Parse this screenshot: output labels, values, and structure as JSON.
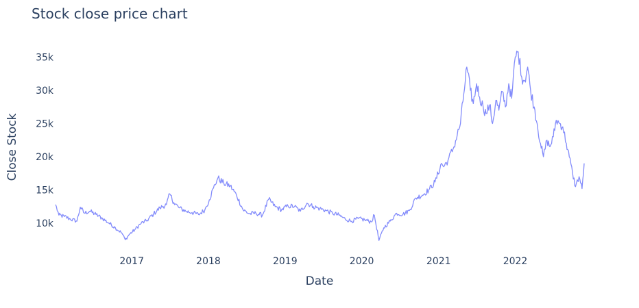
{
  "chart_data": {
    "type": "line",
    "title": "Stock close price chart",
    "xlabel": "Date",
    "ylabel": "Close Stock",
    "x_tick_labels": [
      "2017",
      "2018",
      "2019",
      "2020",
      "2021",
      "2022"
    ],
    "y_tick_labels": [
      "10k",
      "15k",
      "20k",
      "25k",
      "30k",
      "35k"
    ],
    "y_ticks": [
      10000,
      15000,
      20000,
      25000,
      30000,
      35000
    ],
    "xlim": [
      "2016-01-04",
      "2022-11-25"
    ],
    "ylim": [
      6500,
      36800
    ],
    "grid": false,
    "line_color": "#636efa",
    "series": [
      {
        "x": [
          "2016-01-04",
          "2016-01-20",
          "2016-02-15",
          "2016-03-15",
          "2016-04-15",
          "2016-05-01",
          "2016-05-20",
          "2016-06-15",
          "2016-07-15",
          "2016-08-15",
          "2016-09-15",
          "2016-10-15",
          "2016-11-15",
          "2016-12-01",
          "2016-12-20",
          "2017-01-15",
          "2017-02-15",
          "2017-03-15",
          "2017-04-15",
          "2017-05-15",
          "2017-06-15",
          "2017-07-01",
          "2017-07-20",
          "2017-08-15",
          "2017-09-15",
          "2017-10-15",
          "2017-11-15",
          "2017-12-15",
          "2018-01-05",
          "2018-01-25",
          "2018-02-15",
          "2018-03-15",
          "2018-04-15",
          "2018-05-15",
          "2018-06-15",
          "2018-07-15",
          "2018-08-15",
          "2018-09-15",
          "2018-10-15",
          "2018-11-15",
          "2018-12-15",
          "2019-01-15",
          "2019-02-15",
          "2019-03-15",
          "2019-04-15",
          "2019-05-15",
          "2019-06-15",
          "2019-07-15",
          "2019-08-15",
          "2019-09-15",
          "2019-10-15",
          "2019-11-15",
          "2019-12-15",
          "2020-01-15",
          "2020-02-15",
          "2020-03-01",
          "2020-03-23",
          "2020-04-15",
          "2020-05-15",
          "2020-06-15",
          "2020-07-15",
          "2020-08-15",
          "2020-09-15",
          "2020-10-15",
          "2020-11-15",
          "2020-12-15",
          "2021-01-15",
          "2021-01-25",
          "2021-02-15",
          "2021-03-15",
          "2021-04-15",
          "2021-05-01",
          "2021-05-15",
          "2021-06-01",
          "2021-06-15",
          "2021-07-01",
          "2021-07-15",
          "2021-08-01",
          "2021-08-15",
          "2021-09-01",
          "2021-09-15",
          "2021-10-01",
          "2021-10-15",
          "2021-11-01",
          "2021-11-15",
          "2021-12-01",
          "2021-12-15",
          "2022-01-01",
          "2022-01-15",
          "2022-02-01",
          "2022-02-15",
          "2022-03-01",
          "2022-03-15",
          "2022-04-01",
          "2022-04-15",
          "2022-05-01",
          "2022-05-15",
          "2022-06-01",
          "2022-06-15",
          "2022-07-01",
          "2022-07-15",
          "2022-08-01",
          "2022-08-15",
          "2022-09-01",
          "2022-09-15",
          "2022-10-01",
          "2022-10-15",
          "2022-11-01",
          "2022-11-15",
          "2022-11-25"
        ],
        "y": [
          12800,
          11200,
          11000,
          10600,
          10300,
          12400,
          11500,
          11800,
          11300,
          10700,
          10000,
          9300,
          8500,
          7500,
          8300,
          9000,
          10000,
          10400,
          11400,
          12300,
          12800,
          14400,
          13100,
          12300,
          11800,
          11600,
          11300,
          12000,
          13500,
          15300,
          16800,
          16000,
          15600,
          14200,
          12000,
          11400,
          11500,
          11200,
          13600,
          12500,
          12000,
          12600,
          12500,
          11800,
          13000,
          12500,
          12200,
          11900,
          11500,
          11200,
          10600,
          10300,
          10700,
          10500,
          10200,
          11200,
          7400,
          9300,
          10300,
          11500,
          11300,
          11900,
          13800,
          14200,
          15000,
          16200,
          19000,
          18500,
          19500,
          21500,
          25000,
          29500,
          33500,
          30000,
          28000,
          31000,
          29000,
          27500,
          26500,
          27800,
          25000,
          28500,
          27000,
          29800,
          27500,
          31000,
          28800,
          35000,
          35800,
          32000,
          31500,
          33500,
          30000,
          27500,
          25000,
          22000,
          20000,
          22500,
          21500,
          23000,
          25500,
          25000,
          24500,
          22000,
          20000,
          17500,
          15500,
          17000,
          15200,
          19000
        ]
      }
    ]
  }
}
